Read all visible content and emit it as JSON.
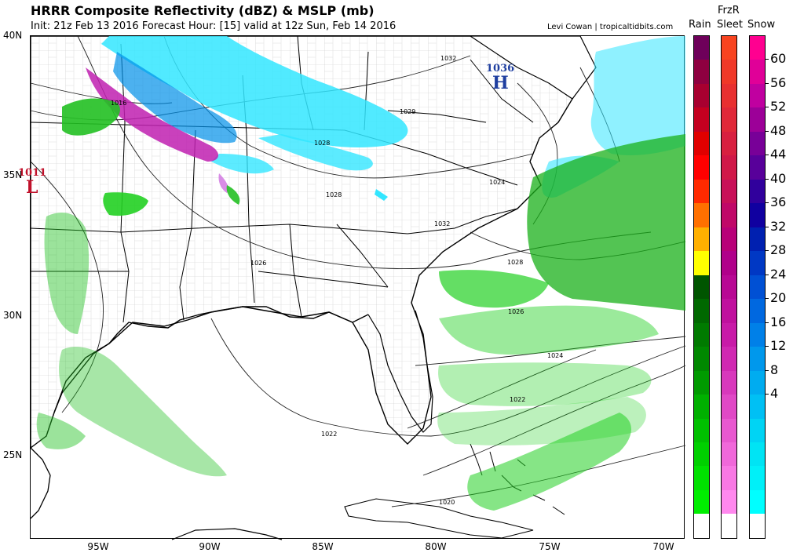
{
  "header": {
    "title": "HRRR Composite Reflectivity (dBZ) & MSLP (mb)",
    "subtitle": "Init: 21z Feb 13 2016   Forecast Hour: [15]   valid at 12z Sun, Feb 14 2016",
    "credit": "Levi Cowan | tropicaltidbits.com"
  },
  "axes": {
    "lat_labels": [
      "40N",
      "35N",
      "30N",
      "25N"
    ],
    "lon_labels": [
      "95W",
      "90W",
      "85W",
      "80W",
      "75W",
      "70W"
    ]
  },
  "pressure_centers": [
    {
      "type": "H",
      "value": "1036",
      "color": "#1f3fa0"
    },
    {
      "type": "L",
      "value": "1011",
      "color": "#c0102a"
    }
  ],
  "isobar_labels": [
    "1032",
    "1016",
    "1029",
    "1028",
    "1028",
    "1024",
    "1032",
    "1026",
    "1028",
    "1026",
    "1024",
    "1022",
    "1022",
    "1020"
  ],
  "legend": {
    "column_headers": {
      "rain": "Rain",
      "frzr_top": "FrzR",
      "sleet": "Sleet",
      "snow": "Snow"
    },
    "ticks": [
      "60",
      "56",
      "52",
      "48",
      "44",
      "40",
      "36",
      "32",
      "28",
      "24",
      "20",
      "16",
      "12",
      "8",
      "4"
    ],
    "rain_colors": [
      "#ffffff",
      "#00ee00",
      "#00e000",
      "#00d000",
      "#00c000",
      "#00b000",
      "#009a00",
      "#008800",
      "#007a00",
      "#006800",
      "#005500",
      "#ffff00",
      "#ffb000",
      "#ff7000",
      "#ff2a00",
      "#ff0000",
      "#e00000",
      "#c40020",
      "#a80030",
      "#8e0040",
      "#6e005a"
    ],
    "frzr_colors": [
      "#ffffff",
      "#ff88ee",
      "#f878e4",
      "#f068da",
      "#e858d0",
      "#e048c6",
      "#d838bc",
      "#d028b2",
      "#c81aa8",
      "#c0109e",
      "#b80894",
      "#b0008a",
      "#b80078",
      "#c00868",
      "#c81058",
      "#d01848",
      "#d82040",
      "#e02838",
      "#e83030",
      "#f03828",
      "#f84420"
    ],
    "snow_colors": [
      "#ffffff",
      "#00ffff",
      "#00f0f8",
      "#00e4f4",
      "#00d4f4",
      "#00c0f4",
      "#00acf0",
      "#0098ec",
      "#0080e8",
      "#0068e0",
      "#0050d4",
      "#0038c4",
      "#0020b0",
      "#1000a0",
      "#30009c",
      "#58009a",
      "#780098",
      "#9c0098",
      "#c000a0",
      "#e00098",
      "#ff0090"
    ]
  }
}
